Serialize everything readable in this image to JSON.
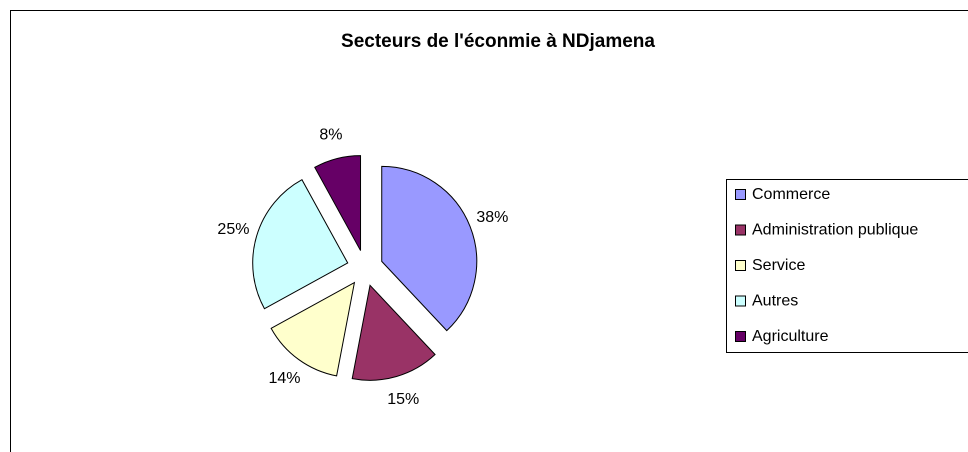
{
  "chart_data": {
    "type": "pie",
    "title": "Secteurs de l'éconmie à NDjamena",
    "categories": [
      "Commerce",
      "Administration publique",
      "Service",
      "Autres",
      "Agriculture"
    ],
    "values": [
      38,
      15,
      14,
      25,
      8
    ],
    "value_labels": [
      "38%",
      "15%",
      "14%",
      "25%",
      "8%"
    ],
    "colors": [
      "#9999ff",
      "#993366",
      "#ffffcc",
      "#ccffff",
      "#660066"
    ],
    "legend": "right"
  }
}
